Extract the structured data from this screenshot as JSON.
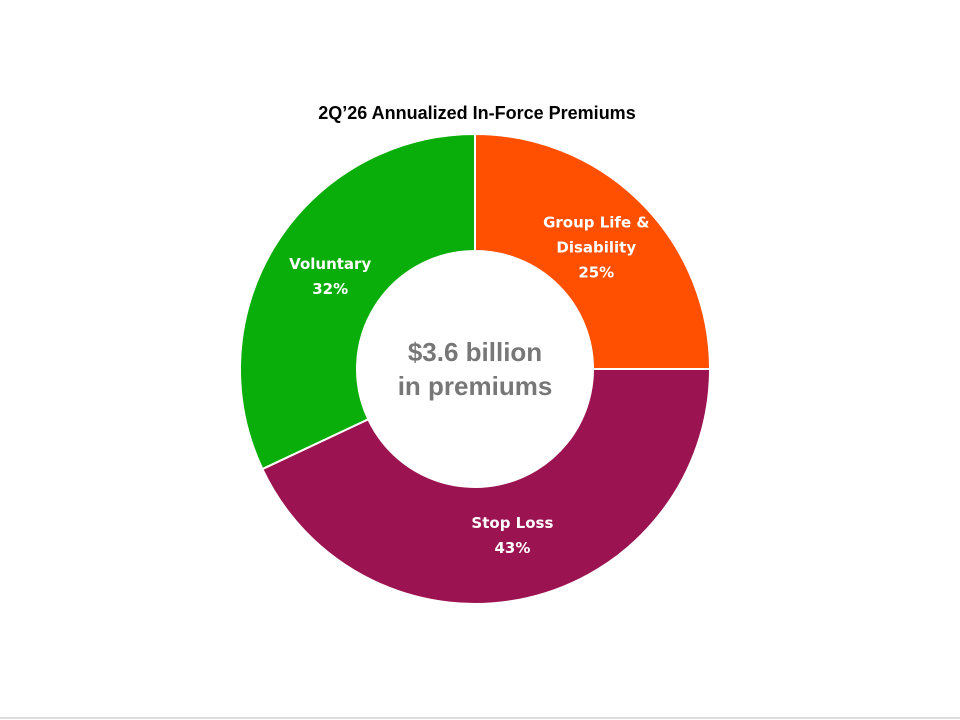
{
  "chart_data": {
    "type": "donut",
    "title": "2Q’26 Annualized In-Force Premiums",
    "center_text": [
      "$3.6 billion",
      "in premiums"
    ],
    "categories": [
      "Group Life & Disability",
      "Stop Loss",
      "Voluntary"
    ],
    "values": [
      25,
      43,
      32
    ],
    "value_labels": [
      "25%",
      "43%",
      "32%"
    ],
    "colors": [
      "#ff4f00",
      "#9b1350",
      "#0aae0a"
    ]
  }
}
